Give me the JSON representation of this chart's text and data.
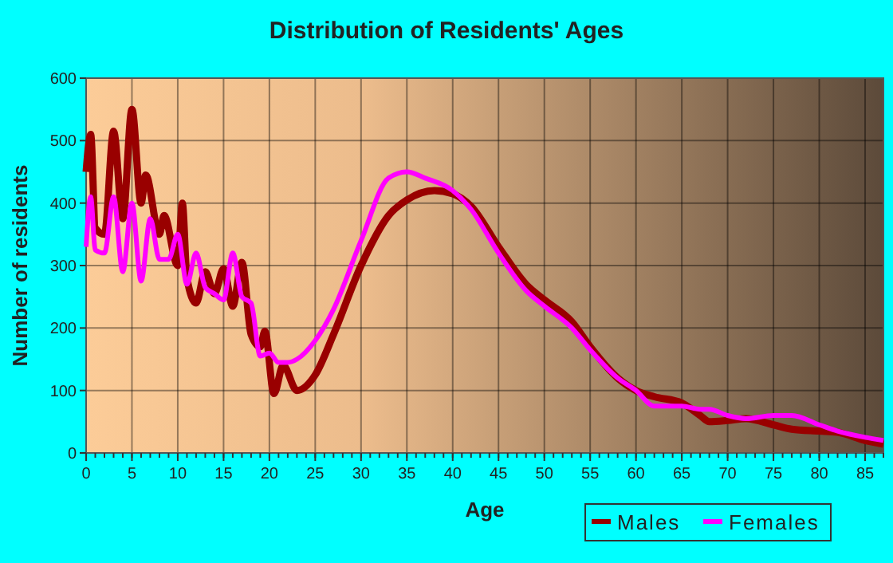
{
  "chart_data": {
    "type": "line",
    "title": "Distribution of Residents' Ages",
    "xlabel": "Age",
    "ylabel": "Number of residents",
    "xlim": [
      0,
      87
    ],
    "xticks": [
      0,
      5,
      10,
      15,
      20,
      25,
      30,
      35,
      40,
      45,
      50,
      55,
      60,
      65,
      70,
      75,
      80,
      85
    ],
    "ylim": [
      0,
      600
    ],
    "yticks": [
      0,
      100,
      200,
      300,
      400,
      500,
      600
    ],
    "grid": true,
    "legend": "bottom",
    "marker": "none",
    "series": [
      {
        "name": "Males",
        "color": "#990000",
        "x": [
          0,
          0.5,
          1,
          2,
          3,
          4,
          5,
          6,
          6.5,
          8,
          8.5,
          10,
          10.5,
          11,
          12,
          13,
          14,
          15,
          16,
          17,
          18,
          19,
          19.5,
          20.5,
          21.5,
          23,
          25,
          27,
          30,
          33,
          35,
          38,
          40,
          42,
          45,
          48,
          50,
          53,
          55,
          58,
          60,
          62,
          65,
          67,
          68,
          70,
          72,
          75,
          77,
          80,
          82,
          85,
          87
        ],
        "values": [
          450,
          510,
          360,
          350,
          515,
          375,
          550,
          400,
          445,
          350,
          380,
          300,
          400,
          280,
          240,
          290,
          255,
          295,
          235,
          305,
          190,
          170,
          195,
          95,
          140,
          100,
          125,
          190,
          300,
          380,
          405,
          420,
          415,
          395,
          330,
          270,
          245,
          210,
          170,
          120,
          100,
          90,
          80,
          60,
          50,
          52,
          55,
          45,
          38,
          35,
          33,
          20,
          14
        ]
      },
      {
        "name": "Females",
        "color": "#ff00ff",
        "x": [
          0,
          0.5,
          1,
          2,
          3,
          4,
          5,
          6,
          7,
          8,
          9,
          10,
          11,
          12,
          13,
          14,
          15,
          16,
          17,
          18,
          19,
          20,
          21,
          22,
          23,
          25,
          27,
          30,
          33,
          35,
          37,
          40,
          42,
          45,
          48,
          50,
          53,
          55,
          58,
          60,
          62,
          65,
          67,
          68,
          70,
          72,
          75,
          77,
          80,
          82,
          85,
          87
        ],
        "values": [
          330,
          410,
          325,
          320,
          410,
          290,
          400,
          275,
          375,
          310,
          310,
          350,
          270,
          320,
          265,
          255,
          245,
          320,
          250,
          240,
          155,
          160,
          145,
          145,
          150,
          180,
          230,
          340,
          440,
          450,
          440,
          420,
          390,
          320,
          260,
          235,
          200,
          165,
          120,
          100,
          75,
          75,
          70,
          70,
          60,
          55,
          60,
          60,
          45,
          35,
          25,
          20
        ]
      }
    ]
  }
}
